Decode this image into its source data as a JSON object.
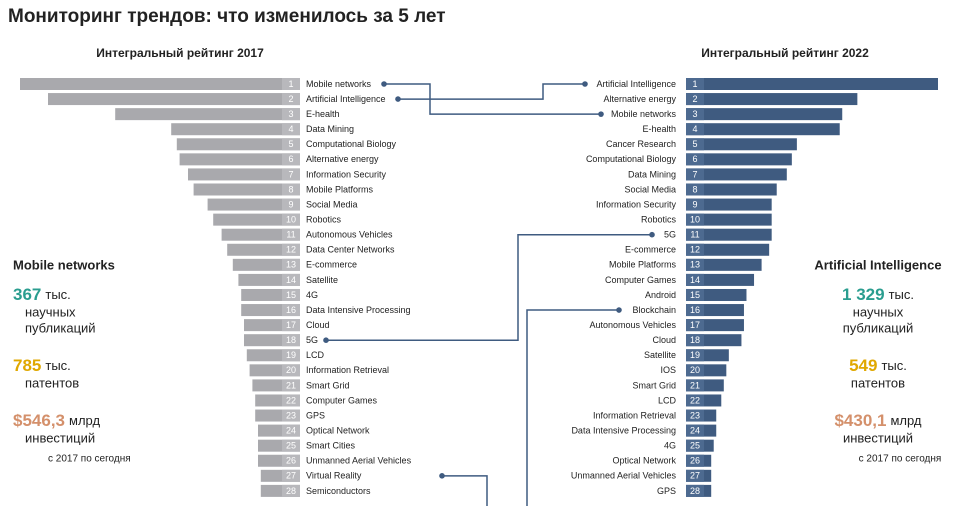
{
  "title": "Мониторинг трендов: что изменилось за 5 лет",
  "chart_data": [
    {
      "type": "bar",
      "orientation": "horizontal",
      "direction": "left",
      "title": "Интегральный рейтинг 2017",
      "color": "#a9a9ad",
      "xlim": [
        0,
        100
      ],
      "ranks": [
        1,
        2,
        3,
        4,
        5,
        6,
        7,
        8,
        9,
        10,
        11,
        12,
        13,
        14,
        15,
        16,
        17,
        18,
        19,
        20,
        21,
        22,
        23,
        24,
        25,
        26,
        27,
        28
      ],
      "categories": [
        "Mobile networks",
        "Artificial Intelligence",
        "E-health",
        "Data Mining",
        "Computational Biology",
        "Alternative energy",
        "Information Security",
        "Mobile Platforms",
        "Social Media",
        "Robotics",
        "Autonomous Vehicles",
        "Data Center Networks",
        "E-commerce",
        "Satellite",
        "4G",
        "Data Intensive Processing",
        "Cloud",
        "5G",
        "LCD",
        "Information Retrieval",
        "Smart Grid",
        "Computer Games",
        "GPS",
        "Optical Network",
        "Smart Cities",
        "Unmanned Aerial Vehicles",
        "Virtual Reality",
        "Semiconductors"
      ],
      "values": [
        100,
        90,
        66,
        46,
        44,
        43,
        40,
        38,
        33,
        31,
        28,
        26,
        24,
        22,
        21,
        21,
        20,
        20,
        19,
        18,
        17,
        16,
        16,
        15,
        15,
        15,
        14,
        14
      ],
      "stats": {
        "name": "Mobile networks",
        "note": "с 2017 по сегодня",
        "items": [
          {
            "value": "367",
            "unit": "тыс.",
            "lines": [
              "научных",
              "публикаций"
            ],
            "color": "#2a9d8f"
          },
          {
            "value": "785",
            "unit": "тыс.",
            "lines": [
              "патентов"
            ],
            "color": "#e0a800"
          },
          {
            "value": "$546,3",
            "unit": "млрд",
            "lines": [
              "инвестиций"
            ],
            "color": "#d4906b"
          }
        ]
      }
    },
    {
      "type": "bar",
      "orientation": "horizontal",
      "direction": "right",
      "title": "Интегральный рейтинг 2022",
      "color": "#3f5b80",
      "xlim": [
        0,
        100
      ],
      "ranks": [
        1,
        2,
        3,
        4,
        5,
        6,
        7,
        8,
        9,
        10,
        11,
        12,
        13,
        14,
        15,
        16,
        17,
        18,
        19,
        20,
        21,
        22,
        23,
        24,
        25,
        26,
        27,
        28
      ],
      "categories": [
        "Artificial Intelligence",
        "Alternative energy",
        "Mobile networks",
        "E-health",
        "Cancer Research",
        "Computational Biology",
        "Data Mining",
        "Social Media",
        "Information Security",
        "Robotics",
        "5G",
        "E-commerce",
        "Mobile Platforms",
        "Computer Games",
        "Android",
        "Blockchain",
        "Autonomous Vehicles",
        "Cloud",
        "Satellite",
        "IOS",
        "Smart Grid",
        "LCD",
        "Information Retrieval",
        "Data Intensive Processing",
        "4G",
        "Optical Network",
        "Unmanned Aerial Vehicles",
        "GPS"
      ],
      "values": [
        100,
        68,
        62,
        61,
        44,
        42,
        40,
        36,
        34,
        34,
        34,
        33,
        30,
        27,
        24,
        23,
        23,
        22,
        17,
        16,
        15,
        14,
        12,
        12,
        11,
        10,
        10,
        10
      ],
      "stats": {
        "name": "Artificial Intelligence",
        "note": "с 2017 по сегодня",
        "items": [
          {
            "value": "1 329",
            "unit": "тыс.",
            "lines": [
              "научных",
              "публикаций"
            ],
            "color": "#2a9d8f"
          },
          {
            "value": "549",
            "unit": "тыс.",
            "lines": [
              "патентов"
            ],
            "color": "#e0a800"
          },
          {
            "value": "$430,1",
            "unit": "млрд",
            "lines": [
              "инвестиций"
            ],
            "color": "#d4906b"
          }
        ]
      }
    }
  ]
}
